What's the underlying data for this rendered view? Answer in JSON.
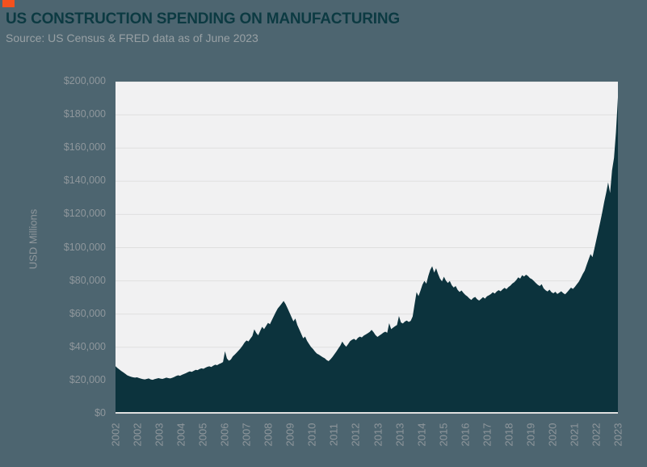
{
  "header": {
    "title": "US CONSTRUCTION SPENDING ON MANUFACTURING",
    "subtitle": "Source: US Census & FRED data as of June 2023"
  },
  "colors": {
    "page_background": "#4d6570",
    "plot_background": "#f1f1f2",
    "gridline": "#dfdfdf",
    "area_fill": "#0c333d",
    "title_text": "#0c3a42",
    "subtitle_text": "#98a0a4",
    "axis_label_text": "#8f979c",
    "accent_square": "#f4511e"
  },
  "chart_data": {
    "type": "area",
    "title": "US CONSTRUCTION SPENDING ON MANUFACTURING",
    "subtitle": "Source: US Census & FRED data as of June 2023",
    "xlabel": "",
    "ylabel": "USD Millions",
    "ylim": [
      0,
      200000
    ],
    "y_tick_interval": 20000,
    "y_tick_labels": [
      "$200,000",
      "$180,000",
      "$160,000",
      "$140,000",
      "$120,000",
      "$100,000",
      "$80,000",
      "$60,000",
      "$40,000",
      "$20,000",
      "$0"
    ],
    "x_tick_labels": [
      "2002",
      "2002",
      "2003",
      "2004",
      "2005",
      "2006",
      "2007",
      "2008",
      "2009",
      "2010",
      "2011",
      "2012",
      "2013",
      "2013",
      "2014",
      "2015",
      "2016",
      "2017",
      "2018",
      "2019",
      "2020",
      "2021",
      "2022",
      "2023"
    ],
    "x_unit": "month",
    "x_range": [
      "2002-01",
      "2023-06"
    ],
    "grid": "horizontal",
    "legend": "none",
    "series": [
      {
        "name": "US construction spending on manufacturing (USD millions, monthly)",
        "monthly_values": [
          28600,
          27500,
          26600,
          25700,
          24900,
          24000,
          23100,
          22600,
          22200,
          21900,
          21700,
          21900,
          21500,
          21100,
          20800,
          20600,
          20900,
          21200,
          20600,
          20400,
          20800,
          21100,
          21400,
          21100,
          20900,
          21300,
          21700,
          21400,
          21200,
          21600,
          22100,
          22700,
          23100,
          22800,
          23400,
          23900,
          24400,
          25000,
          25500,
          25200,
          25800,
          26400,
          26200,
          26900,
          27300,
          27000,
          27700,
          28200,
          28500,
          28100,
          28900,
          29500,
          29200,
          29900,
          30400,
          31100,
          37600,
          33300,
          31900,
          32600,
          34500,
          35600,
          36800,
          38100,
          39400,
          41000,
          42800,
          44100,
          43500,
          45200,
          46800,
          50800,
          48600,
          47200,
          49800,
          52300,
          50900,
          52800,
          54700,
          53900,
          56400,
          58800,
          61200,
          63400,
          64800,
          66300,
          67900,
          66000,
          63500,
          60900,
          58200,
          55600,
          57300,
          53400,
          50800,
          48100,
          45400,
          46500,
          43800,
          42000,
          40200,
          39000,
          37500,
          36200,
          35600,
          34800,
          34000,
          33400,
          32300,
          31600,
          32800,
          34200,
          35800,
          37500,
          39300,
          41000,
          43400,
          41600,
          40300,
          41900,
          43700,
          44500,
          45100,
          44200,
          45700,
          46400,
          45900,
          47000,
          47700,
          48400,
          49200,
          50500,
          49100,
          47300,
          46200,
          47100,
          47900,
          48800,
          49400,
          48700,
          54500,
          50900,
          51800,
          52700,
          53400,
          58800,
          54900,
          54300,
          55500,
          56100,
          55200,
          55900,
          58500,
          66000,
          73200,
          70800,
          74100,
          77700,
          80000,
          78300,
          82900,
          86600,
          88800,
          85000,
          87600,
          84100,
          81300,
          79700,
          82500,
          80200,
          78700,
          79900,
          77400,
          76000,
          76900,
          74600,
          73300,
          74200,
          72700,
          71500,
          70600,
          69400,
          68500,
          69700,
          70300,
          68900,
          68100,
          69100,
          70200,
          69300,
          70700,
          71300,
          72000,
          73100,
          72300,
          73600,
          74400,
          73700,
          74900,
          75800,
          75000,
          76300,
          77100,
          78400,
          79200,
          80500,
          82100,
          81300,
          83400,
          82600,
          83700,
          82900,
          81600,
          81000,
          79900,
          78700,
          77600,
          76900,
          78000,
          75500,
          74300,
          73600,
          74700,
          73200,
          72500,
          73400,
          72100,
          72900,
          73700,
          72600,
          71900,
          73100,
          74500,
          75900,
          75100,
          76400,
          78000,
          79500,
          81700,
          84100,
          86100,
          89600,
          92900,
          96100,
          94300,
          99600,
          104900,
          110300,
          115700,
          121400,
          127600,
          133100,
          139300,
          132900,
          146600,
          154100,
          169600,
          190500
        ]
      }
    ]
  }
}
